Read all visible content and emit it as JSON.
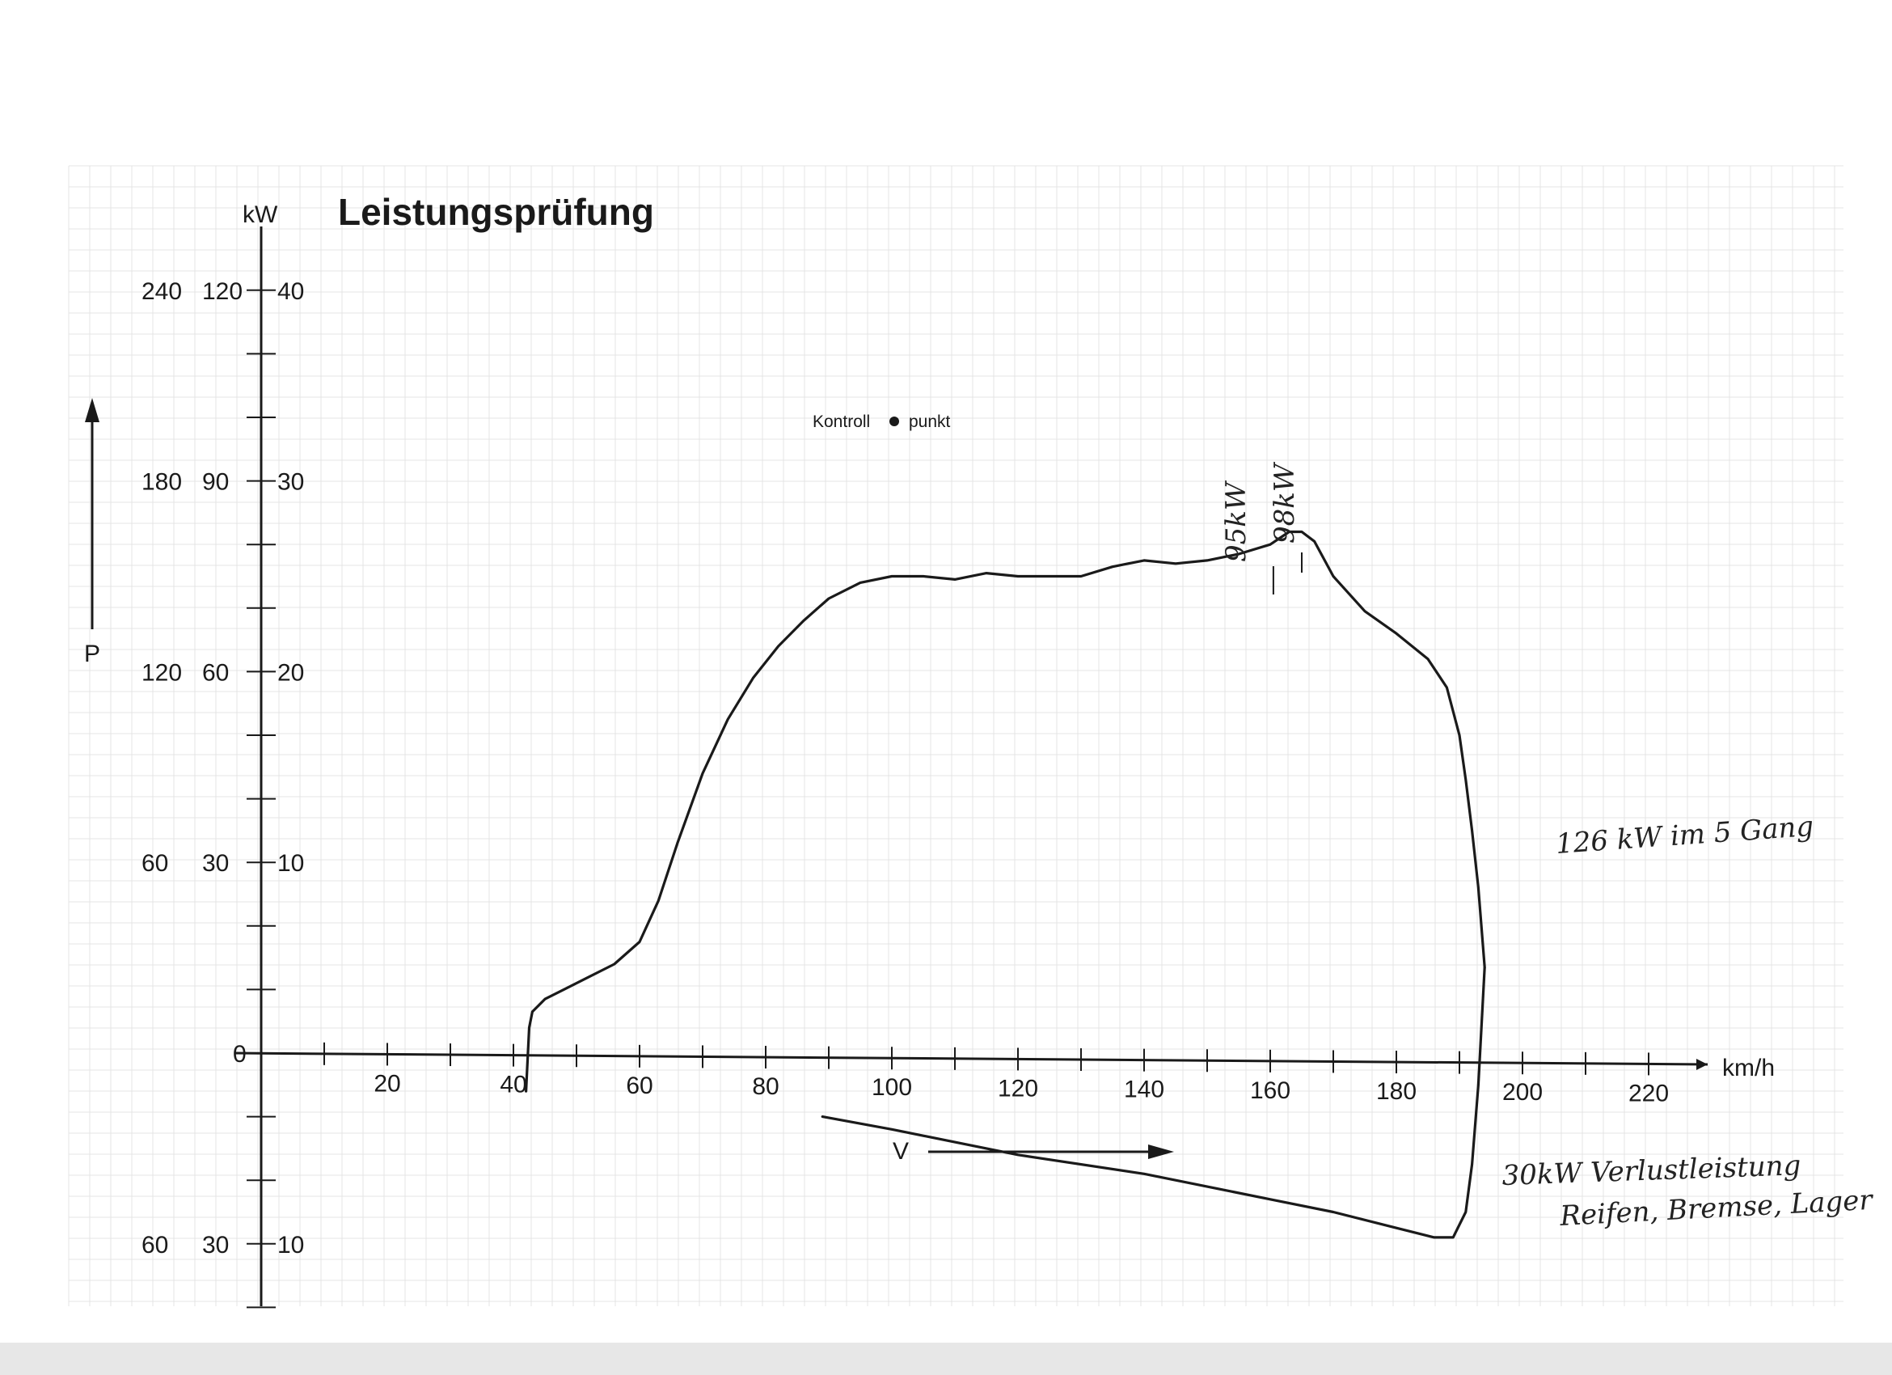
{
  "chart_data": {
    "type": "line",
    "title": "Leistungsprüfung",
    "ylabel_unit": "kW",
    "y_axis_letter": "P",
    "x_unit": "km/h",
    "velocity_letter": "V",
    "y_tick_groups": {
      "top": [
        "240",
        "120",
        "40"
      ],
      "upper": [
        "180",
        "90",
        "30"
      ],
      "middle": [
        "120",
        "60",
        "20"
      ],
      "lower": [
        "60",
        "30",
        "10"
      ],
      "zero": "0",
      "negative": [
        "60",
        "30",
        "10"
      ]
    },
    "x_tick_labels": [
      "20",
      "40",
      "60",
      "80",
      "100",
      "120",
      "140",
      "160",
      "180",
      "200",
      "220"
    ],
    "xlim": [
      0,
      230
    ],
    "ylim": [
      -300,
      1200
    ],
    "y_units_note": "curve values stored in the 240-scale of the outer y label column",
    "series": [
      {
        "x": [
          42,
          42.5,
          43,
          45,
          48,
          52,
          56,
          60,
          63,
          66,
          70,
          74,
          78,
          82,
          86,
          90,
          95,
          100,
          105,
          110,
          115,
          120,
          125,
          130,
          135,
          140,
          145,
          150,
          155,
          160,
          163,
          165,
          167,
          170,
          175,
          180,
          185,
          188,
          190,
          191,
          192,
          193,
          194
        ],
        "y": [
          -12,
          8,
          13,
          17,
          20,
          24,
          28,
          35,
          48,
          66,
          88,
          105,
          118,
          128,
          136,
          143,
          148,
          150,
          150,
          149,
          151,
          150,
          150,
          150,
          153,
          155,
          154,
          155,
          157,
          160,
          164,
          164,
          161,
          150,
          139,
          132,
          124,
          115,
          100,
          86,
          70,
          52,
          27
        ]
      },
      {
        "x": [
          89,
          100,
          120,
          140,
          160,
          170,
          180,
          186,
          189,
          191,
          192,
          193
        ],
        "y": [
          -20,
          -24,
          -32,
          -38,
          -46,
          -50,
          -55,
          -58,
          -58,
          -50,
          -35,
          -10
        ]
      }
    ],
    "annotations": {
      "kontroll_left": "Kontroll",
      "kontroll_right": "punkt",
      "peak_label_1": "95kW",
      "peak_label_2": "98kW",
      "note_power": "126 kW im 5 Gang",
      "note_loss_1": "30kW Verlustleistung",
      "note_loss_2": "Reifen, Bremse, Lager"
    },
    "grid": true
  },
  "colors": {
    "ink": "#1a1a1a",
    "grid": "#e4e4e4",
    "grid_major": "#d8d8d8",
    "paper": "#ffffff",
    "strip": "#e7e7e7"
  }
}
